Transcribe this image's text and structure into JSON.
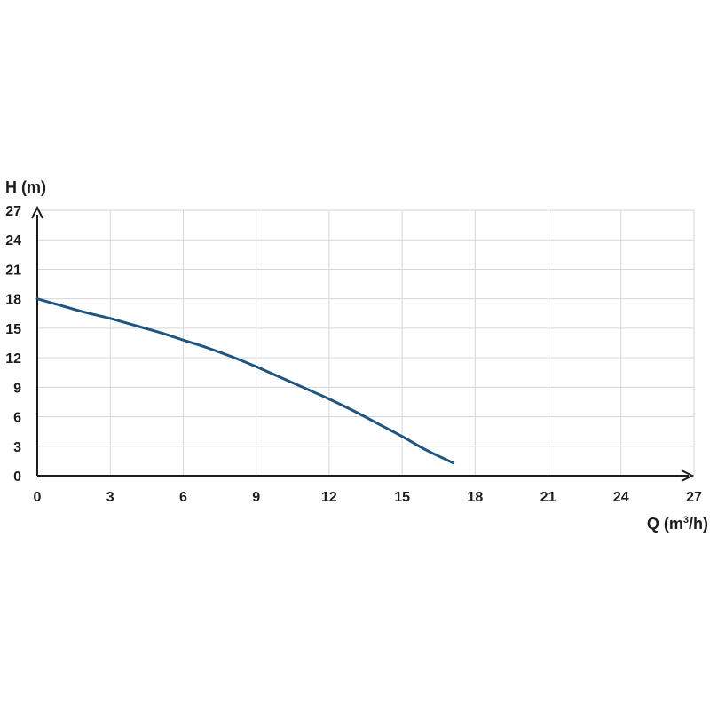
{
  "chart_data": {
    "type": "line",
    "title": "",
    "ylabel": "H (m)",
    "xlabel_main": "Q (m",
    "xlabel_sup": "3",
    "xlabel_tail": "/h)",
    "xlim": [
      0,
      27
    ],
    "ylim": [
      0,
      27
    ],
    "x_ticks": [
      0,
      3,
      6,
      9,
      12,
      15,
      18,
      21,
      24,
      27
    ],
    "y_ticks": [
      0,
      3,
      6,
      9,
      12,
      15,
      18,
      21,
      24,
      27
    ],
    "grid": true,
    "line_color": "#1f5580",
    "series": [
      {
        "x": [
          0,
          1,
          2,
          3,
          4,
          5,
          6,
          7,
          8,
          9,
          10,
          11,
          12,
          13,
          14,
          15,
          16,
          17.1
        ],
        "y": [
          18.0,
          17.3,
          16.6,
          16.0,
          15.3,
          14.6,
          13.8,
          13.0,
          12.1,
          11.1,
          10.0,
          8.9,
          7.8,
          6.6,
          5.3,
          4.0,
          2.6,
          1.3
        ]
      }
    ]
  }
}
